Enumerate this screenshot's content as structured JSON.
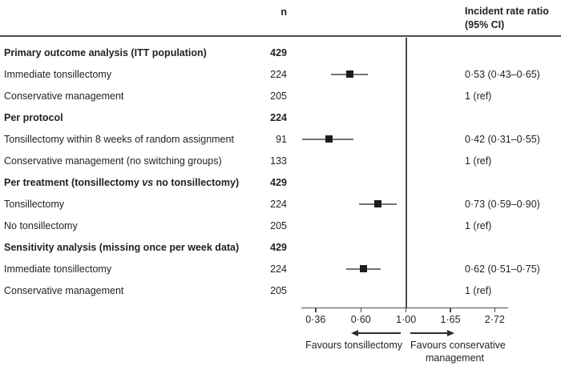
{
  "header": {
    "n_label": "n",
    "irr_label_line1": "Incident rate ratio",
    "irr_label_line2": "(95% CI)"
  },
  "rows": [
    {
      "label": "Primary outcome analysis (ITT population)",
      "bold": true,
      "n": "429",
      "irr": ""
    },
    {
      "label": "Immediate tonsillectomy",
      "bold": false,
      "n": "224",
      "irr": "0·53 (0·43–0·65)",
      "point_index": 0
    },
    {
      "label": "Conservative management",
      "bold": false,
      "n": "205",
      "irr": "1 (ref)"
    },
    {
      "label": "Per protocol",
      "bold": true,
      "n": "224",
      "irr": ""
    },
    {
      "label": "Tonsillectomy within 8 weeks of random assignment",
      "bold": false,
      "n": "91",
      "irr": "0·42 (0·31–0·55)",
      "point_index": 1
    },
    {
      "label": "Conservative management (no switching groups)",
      "bold": false,
      "n": "133",
      "irr": "1 (ref)"
    },
    {
      "label_pre": "Per treatment (tonsillectomy ",
      "label_em": "vs",
      "label_post": " no tonsillectomy)",
      "bold": true,
      "n": "429",
      "irr": ""
    },
    {
      "label": "Tonsillectomy",
      "bold": false,
      "n": "224",
      "irr": "0·73 (0·59–0·90)",
      "point_index": 2
    },
    {
      "label": "No tonsillectomy",
      "bold": false,
      "n": "205",
      "irr": "1 (ref)"
    },
    {
      "label": "Sensitivity analysis (missing once per week data)",
      "bold": true,
      "n": "429",
      "irr": ""
    },
    {
      "label": "Immediate tonsillectomy",
      "bold": false,
      "n": "224",
      "irr": "0·62 (0·51–0·75)",
      "point_index": 3
    },
    {
      "label": "Conservative management",
      "bold": false,
      "n": "205",
      "irr": "1 (ref)"
    }
  ],
  "chart_data": {
    "type": "forest",
    "x_scale": "log",
    "ref_line": 1.0,
    "x_ticks": [
      0.36,
      0.6,
      1.0,
      1.65,
      2.72
    ],
    "x_tick_labels": [
      "0·36",
      "0·60",
      "1·00",
      "1·65",
      "2·72"
    ],
    "points": [
      {
        "group": "Primary outcome analysis (ITT population)",
        "label": "Immediate tonsillectomy",
        "est": 0.53,
        "lo": 0.43,
        "hi": 0.65
      },
      {
        "group": "Per protocol",
        "label": "Tonsillectomy within 8 weeks of random assignment",
        "est": 0.42,
        "lo": 0.31,
        "hi": 0.55
      },
      {
        "group": "Per treatment (tonsillectomy vs no tonsillectomy)",
        "label": "Tonsillectomy",
        "est": 0.73,
        "lo": 0.59,
        "hi": 0.9
      },
      {
        "group": "Sensitivity analysis (missing once per week data)",
        "label": "Immediate tonsillectomy",
        "est": 0.62,
        "lo": 0.51,
        "hi": 0.75
      }
    ],
    "favours_left": "Favours tonsillectomy",
    "favours_right_lines": [
      "Favours conservative",
      "management"
    ]
  },
  "colors": {
    "text": "#231f20",
    "rule": "#4a4b4d",
    "ci_line": "#737477",
    "marker": "#1d1d1b"
  }
}
